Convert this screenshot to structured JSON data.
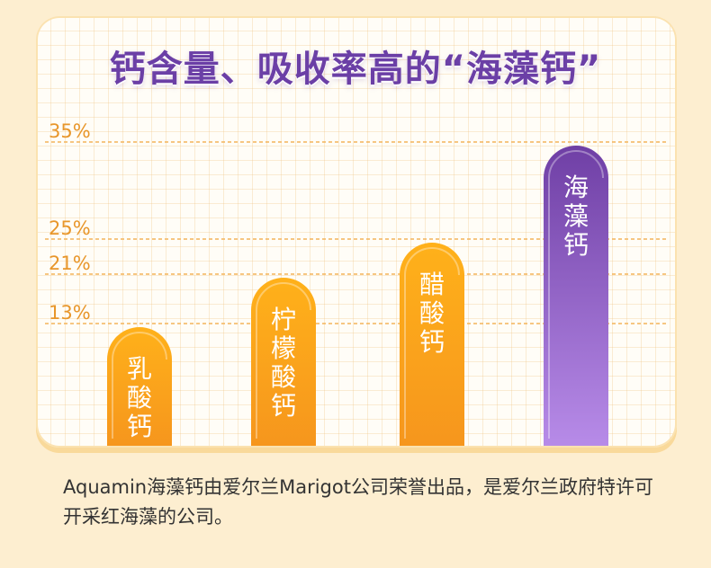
{
  "title": "钙含量、吸收率高的“海藻钙”",
  "footer_text": "Aquamin海藻钙由爱尔兰Marigot公司荣誉出品，是爱尔兰政府特许可开采红海藻的公司。",
  "colors": {
    "orange_top": "#ffb11a",
    "orange_bottom": "#f6961d",
    "purple_top": "#6f3fa5",
    "purple_bottom": "#b78be8",
    "tick_line": "#f4b45a",
    "tick_text": "#e8962a"
  },
  "chart_data": {
    "type": "bar",
    "categories": [
      "乳酸钙",
      "柠檬酸钙",
      "醋酸钙",
      "海藻钙"
    ],
    "values": [
      13,
      21,
      25,
      35
    ],
    "tick_labels": [
      "13%",
      "21%",
      "25%",
      "35%"
    ],
    "highlight": "海藻钙",
    "grid": true
  }
}
